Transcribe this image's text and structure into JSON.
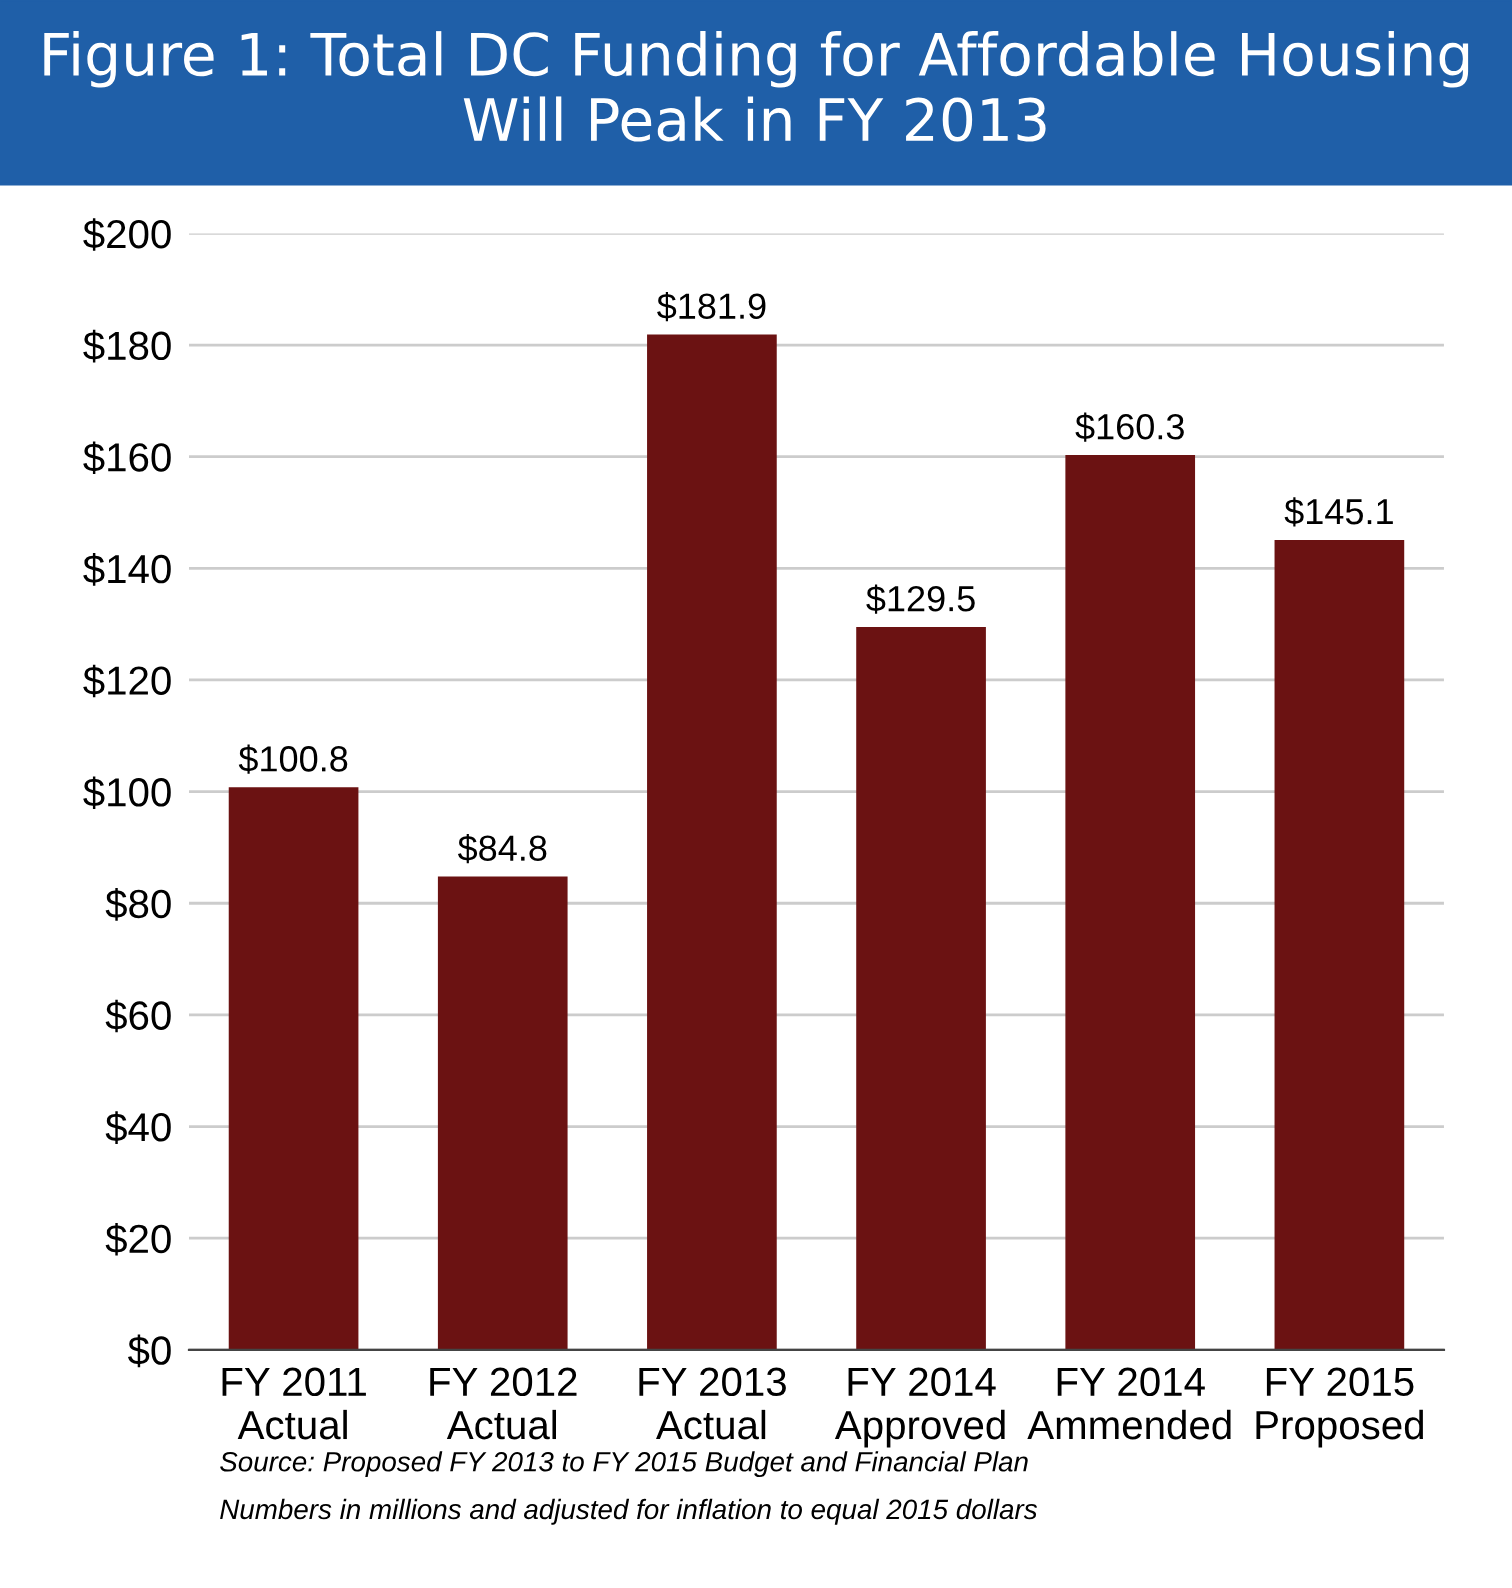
{
  "chart_data": {
    "type": "bar",
    "title": "Figure 1: Total DC Funding for Affordable Housing Will Peak in FY 2013",
    "categories": [
      "FY 2011\nActual",
      "FY 2012\nActual",
      "FY 2013\nActual",
      "FY 2014\nApproved",
      "FY 2014\nAmmended",
      "FY 2015\nProposed"
    ],
    "values": [
      100.8,
      84.8,
      181.9,
      129.5,
      160.3,
      145.1
    ],
    "value_labels": [
      "$100.8",
      "$84.8",
      "$181.9",
      "$129.5",
      "$160.3",
      "$145.1"
    ],
    "color": "#6b1212",
    "ylim": [
      0,
      200
    ],
    "yticks": [
      {
        "value": 0,
        "label": "$0"
      },
      {
        "value": 20,
        "label": "$20"
      },
      {
        "value": 40,
        "label": "$40"
      },
      {
        "value": 60,
        "label": "$60"
      },
      {
        "value": 80,
        "label": "$80"
      },
      {
        "value": 100,
        "label": "$100"
      },
      {
        "value": 120,
        "label": "$120"
      },
      {
        "value": 140,
        "label": "$140"
      },
      {
        "value": 160,
        "label": "$160"
      },
      {
        "value": 180,
        "label": "$180"
      },
      {
        "value": 200,
        "label": "$200"
      }
    ],
    "grid": "y",
    "annotations": [
      "Source: Proposed FY 2013 to FY 2015 Budget and Financial Plan",
      "Numbers in millions and adjusted for inflation to equal 2015 dollars"
    ]
  }
}
